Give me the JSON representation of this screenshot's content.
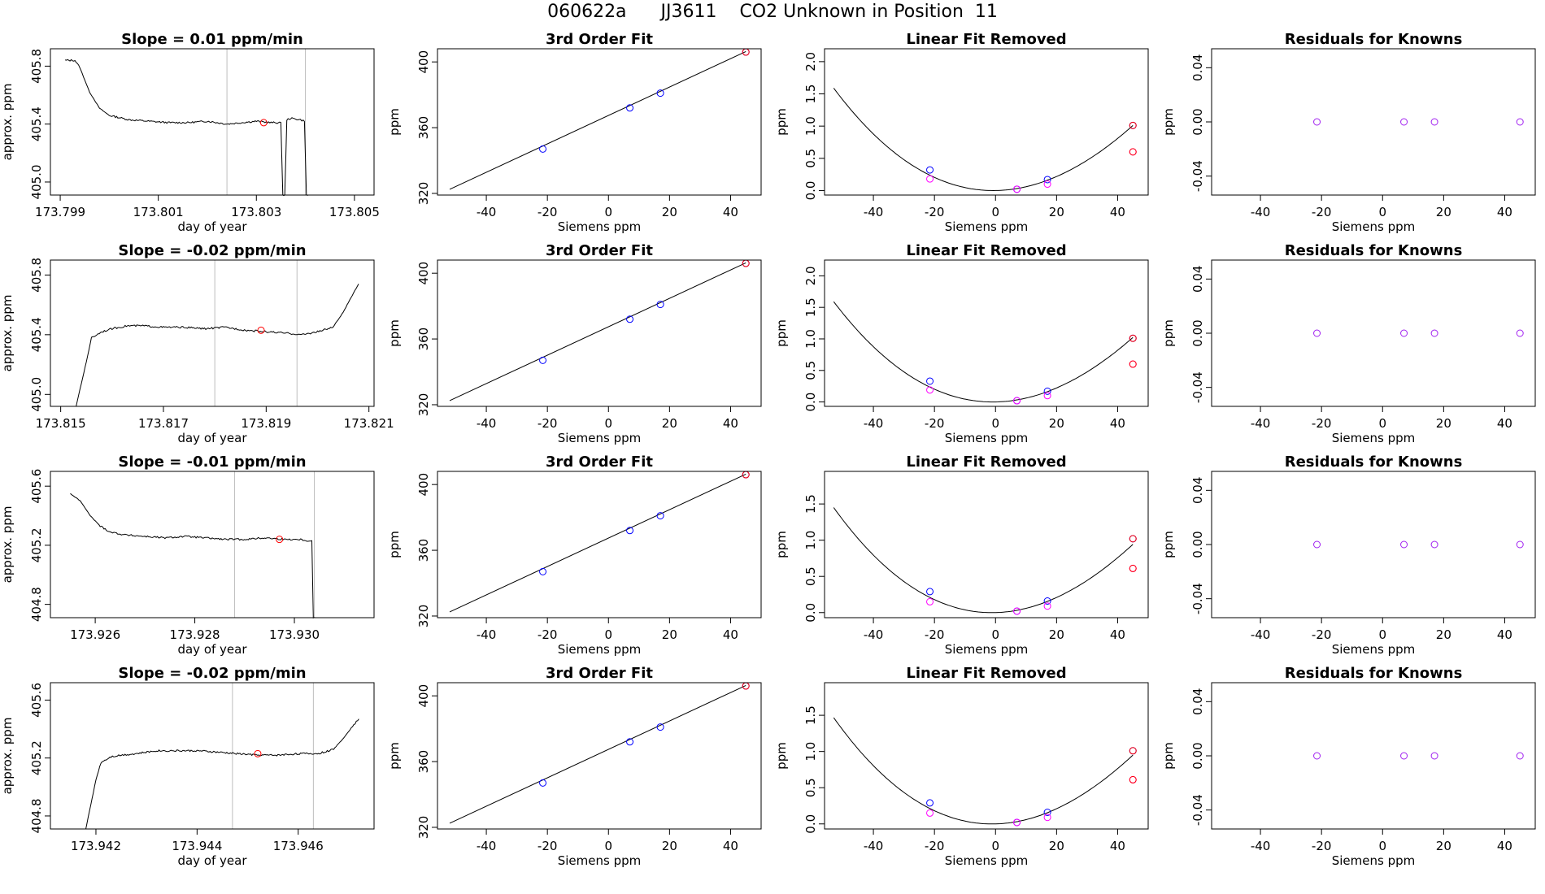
{
  "figure": {
    "title": "060622a      JJ3611    CO2 Unknown in Position  11"
  },
  "colors": {
    "line": "#000000",
    "vline": "#bebebe",
    "red": "#ff0000",
    "blue": "#0000ff",
    "magenta": "#ff00ff",
    "purple": "#a020f0"
  },
  "chart_data": [
    {
      "type": "line",
      "title": "Slope =  0.01  ppm/min",
      "xlabel": "day of year",
      "ylabel": "approx. ppm",
      "xlim": [
        173.7988,
        173.8054
      ],
      "ylim": [
        404.91,
        405.92
      ],
      "xticks": [
        173.799,
        173.801,
        173.803,
        173.805
      ],
      "xticklabels": [
        "173.799",
        "173.801",
        "173.803",
        "173.805"
      ],
      "yticks": [
        405.0,
        405.4,
        405.8
      ],
      "yticklabels": [
        "405.0",
        "405.4",
        "405.8"
      ],
      "vlines": [
        173.8024,
        173.804
      ],
      "marker": [
        173.80315,
        405.41
      ],
      "x": [
        173.7991,
        173.7993,
        173.7994,
        173.7996,
        173.7998,
        173.8,
        173.8004,
        173.8008,
        173.8012,
        173.8016,
        173.802,
        173.8024,
        173.8027,
        173.803,
        173.8033,
        173.8035,
        173.80354,
        173.80358,
        173.80362,
        173.8037,
        173.8039,
        173.80398,
        173.80402,
        173.80406
      ],
      "y": [
        405.84,
        405.84,
        405.79,
        405.62,
        405.51,
        405.46,
        405.43,
        405.42,
        405.41,
        405.41,
        405.42,
        405.4,
        405.41,
        405.42,
        405.41,
        405.41,
        404.91,
        404.91,
        405.43,
        405.44,
        405.43,
        405.42,
        404.91,
        404.91
      ]
    },
    {
      "type": "scatter",
      "title": "3rd Order Fit",
      "xlabel": "Siemens ppm",
      "ylabel": "ppm",
      "xlim": [
        -56,
        50
      ],
      "ylim": [
        319,
        408
      ],
      "xticks": [
        -40,
        -20,
        0,
        20,
        40
      ],
      "xticklabels": [
        "-40",
        "-20",
        "0",
        "20",
        "40"
      ],
      "yticks": [
        320,
        360,
        400
      ],
      "yticklabels": [
        "320",
        "360",
        "400"
      ],
      "line": [
        [
          -52,
          322.5
        ],
        [
          45,
          406.3
        ]
      ],
      "series": [
        {
          "color": "blue",
          "x": [
            -21.5,
            7,
            17,
            45
          ],
          "y": [
            347,
            372,
            381,
            406
          ]
        },
        {
          "color": "red",
          "x": [
            45
          ],
          "y": [
            406
          ]
        }
      ]
    },
    {
      "type": "scatter",
      "title": "Linear Fit Removed",
      "xlabel": "Siemens ppm",
      "ylabel": "ppm",
      "xlim": [
        -56,
        50
      ],
      "ylim": [
        -0.07,
        2.2
      ],
      "xticks": [
        -40,
        -20,
        0,
        20,
        40
      ],
      "xticklabels": [
        "-40",
        "-20",
        "0",
        "20",
        "40"
      ],
      "yticks": [
        0.0,
        0.5,
        1.0,
        1.5,
        2.0
      ],
      "yticklabels": [
        "0.0",
        "0.5",
        "1.0",
        "1.5",
        "2.0"
      ],
      "curve": {
        "a": 0.000527,
        "b": 0.00074,
        "c": -1e-06,
        "xmin": -53,
        "xmax": 45
      },
      "series": [
        {
          "color": "blue",
          "x": [
            -21.5,
            7,
            17,
            45
          ],
          "y": [
            0.32,
            0.02,
            0.17,
            1.01
          ]
        },
        {
          "color": "magenta",
          "x": [
            -21.5,
            7,
            17,
            45
          ],
          "y": [
            0.18,
            0.02,
            0.1,
            0.6
          ]
        },
        {
          "color": "red",
          "x": [
            45,
            45
          ],
          "y": [
            1.01,
            0.6
          ]
        }
      ]
    },
    {
      "type": "scatter",
      "title": "Residuals for Knowns",
      "xlabel": "Siemens ppm",
      "ylabel": "ppm",
      "xlim": [
        -56,
        50
      ],
      "ylim": [
        -0.054,
        0.054
      ],
      "xticks": [
        -40,
        -20,
        0,
        20,
        40
      ],
      "xticklabels": [
        "-40",
        "-20",
        "0",
        "20",
        "40"
      ],
      "yticks": [
        -0.04,
        0.0,
        0.04
      ],
      "yticklabels": [
        "-0.04",
        "0.00",
        "0.04"
      ],
      "series": [
        {
          "color": "purple",
          "x": [
            -21.5,
            7,
            17,
            45
          ],
          "y": [
            0,
            0,
            0,
            0
          ]
        }
      ]
    },
    {
      "type": "line",
      "title": "Slope =  -0.02  ppm/min",
      "xlabel": "day of year",
      "ylabel": "approx. ppm",
      "xlim": [
        173.8148,
        173.8211
      ],
      "ylim": [
        404.92,
        405.9
      ],
      "xticks": [
        173.815,
        173.817,
        173.819,
        173.821
      ],
      "xticklabels": [
        "173.815",
        "173.817",
        "173.819",
        "173.821"
      ],
      "yticks": [
        405.0,
        405.4,
        405.8
      ],
      "yticklabels": [
        "405.0",
        "405.4",
        "405.8"
      ],
      "vlines": [
        173.818,
        173.8196
      ],
      "marker": [
        173.8189,
        405.43
      ],
      "x": [
        173.8153,
        173.8155,
        173.8156,
        173.8158,
        173.816,
        173.8163,
        173.8166,
        173.817,
        173.8174,
        173.8178,
        173.8182,
        173.8186,
        173.819,
        173.8194,
        173.8197,
        173.82,
        173.8203,
        173.8205,
        173.8207,
        173.8208
      ],
      "y": [
        404.92,
        405.22,
        405.38,
        405.42,
        405.44,
        405.46,
        405.46,
        405.45,
        405.45,
        405.44,
        405.45,
        405.43,
        405.42,
        405.41,
        405.4,
        405.42,
        405.45,
        405.55,
        405.68,
        405.74
      ]
    },
    {
      "type": "scatter",
      "title": "3rd Order Fit",
      "xlabel": "Siemens ppm",
      "ylabel": "ppm",
      "xlim": [
        -56,
        50
      ],
      "ylim": [
        319,
        408
      ],
      "xticks": [
        -40,
        -20,
        0,
        20,
        40
      ],
      "xticklabels": [
        "-40",
        "-20",
        "0",
        "20",
        "40"
      ],
      "yticks": [
        320,
        360,
        400
      ],
      "yticklabels": [
        "320",
        "360",
        "400"
      ],
      "line": [
        [
          -52,
          322.5
        ],
        [
          45,
          406.3
        ]
      ],
      "series": [
        {
          "color": "blue",
          "x": [
            -21.5,
            7,
            17,
            45
          ],
          "y": [
            347,
            372,
            381,
            406
          ]
        },
        {
          "color": "red",
          "x": [
            45
          ],
          "y": [
            406
          ]
        }
      ]
    },
    {
      "type": "scatter",
      "title": "Linear Fit Removed",
      "xlabel": "Siemens ppm",
      "ylabel": "ppm",
      "xlim": [
        -56,
        50
      ],
      "ylim": [
        -0.07,
        2.25
      ],
      "xticks": [
        -40,
        -20,
        0,
        20,
        40
      ],
      "xticklabels": [
        "-40",
        "-20",
        "0",
        "20",
        "40"
      ],
      "yticks": [
        0.0,
        0.5,
        1.0,
        1.5,
        2.0
      ],
      "yticklabels": [
        "0.0",
        "0.5",
        "1.0",
        "1.5",
        "2.0"
      ],
      "curve": {
        "a": 0.00053,
        "b": 0.0009,
        "c": -1e-06,
        "xmin": -53,
        "xmax": 45
      },
      "series": [
        {
          "color": "blue",
          "x": [
            -21.5,
            7,
            17,
            45
          ],
          "y": [
            0.33,
            0.02,
            0.17,
            1.01
          ]
        },
        {
          "color": "magenta",
          "x": [
            -21.5,
            7,
            17,
            45
          ],
          "y": [
            0.19,
            0.02,
            0.1,
            0.6
          ]
        },
        {
          "color": "red",
          "x": [
            45,
            45
          ],
          "y": [
            1.01,
            0.6
          ]
        }
      ]
    },
    {
      "type": "scatter",
      "title": "Residuals for Knowns",
      "xlabel": "Siemens ppm",
      "ylabel": "ppm",
      "xlim": [
        -56,
        50
      ],
      "ylim": [
        -0.054,
        0.054
      ],
      "xticks": [
        -40,
        -20,
        0,
        20,
        40
      ],
      "xticklabels": [
        "-40",
        "-20",
        "0",
        "20",
        "40"
      ],
      "yticks": [
        -0.04,
        0.0,
        0.04
      ],
      "yticklabels": [
        "-0.04",
        "0.00",
        "0.04"
      ],
      "series": [
        {
          "color": "purple",
          "x": [
            -21.5,
            7,
            17,
            45
          ],
          "y": [
            0,
            0,
            0,
            0
          ]
        }
      ]
    },
    {
      "type": "line",
      "title": "Slope =  -0.01  ppm/min",
      "xlabel": "day of year",
      "ylabel": "approx. ppm",
      "xlim": [
        173.9251,
        173.9316
      ],
      "ylim": [
        404.71,
        405.7
      ],
      "xticks": [
        173.926,
        173.928,
        173.93
      ],
      "xticklabels": [
        "173.926",
        "173.928",
        "173.930"
      ],
      "yticks": [
        404.8,
        405.2,
        405.6
      ],
      "yticklabels": [
        "404.8",
        "405.2",
        "405.6"
      ],
      "vlines": [
        173.9288,
        173.9304
      ],
      "marker": [
        173.9297,
        405.24
      ],
      "x": [
        173.9255,
        173.9257,
        173.9259,
        173.9261,
        173.9263,
        173.9266,
        173.927,
        173.9274,
        173.9278,
        173.9282,
        173.9286,
        173.929,
        173.9294,
        173.9298,
        173.9301,
        173.9303,
        173.93035,
        173.93038,
        173.93042
      ],
      "y": [
        405.55,
        405.5,
        405.4,
        405.33,
        405.29,
        405.27,
        405.26,
        405.25,
        405.26,
        405.25,
        405.24,
        405.24,
        405.25,
        405.24,
        405.24,
        405.23,
        405.23,
        404.71,
        404.71
      ]
    },
    {
      "type": "scatter",
      "title": "3rd Order Fit",
      "xlabel": "Siemens ppm",
      "ylabel": "ppm",
      "xlim": [
        -56,
        50
      ],
      "ylim": [
        319,
        408
      ],
      "xticks": [
        -40,
        -20,
        0,
        20,
        40
      ],
      "xticklabels": [
        "-40",
        "-20",
        "0",
        "20",
        "40"
      ],
      "yticks": [
        320,
        360,
        400
      ],
      "yticklabels": [
        "320",
        "360",
        "400"
      ],
      "line": [
        [
          -52,
          322.5
        ],
        [
          45,
          406.3
        ]
      ],
      "series": [
        {
          "color": "blue",
          "x": [
            -21.5,
            7,
            17,
            45
          ],
          "y": [
            347,
            372,
            381,
            406
          ]
        },
        {
          "color": "red",
          "x": [
            45
          ],
          "y": [
            406
          ]
        }
      ]
    },
    {
      "type": "scatter",
      "title": "Linear Fit Removed",
      "xlabel": "Siemens ppm",
      "ylabel": "ppm",
      "xlim": [
        -56,
        50
      ],
      "ylim": [
        -0.07,
        1.95
      ],
      "xticks": [
        -40,
        -20,
        0,
        20,
        40
      ],
      "xticklabels": [
        "-40",
        "-20",
        "0",
        "20",
        "40"
      ],
      "yticks": [
        0.0,
        0.5,
        1.0,
        1.5
      ],
      "yticklabels": [
        "0.0",
        "0.5",
        "1.0",
        "1.5"
      ],
      "curve": {
        "a": 0.000485,
        "b": 0.00115,
        "c": -1e-06,
        "xmin": -53,
        "xmax": 45
      },
      "series": [
        {
          "color": "blue",
          "x": [
            -21.5,
            7,
            17,
            45
          ],
          "y": [
            0.29,
            0.02,
            0.16,
            1.02
          ]
        },
        {
          "color": "magenta",
          "x": [
            -21.5,
            7,
            17,
            45
          ],
          "y": [
            0.15,
            0.02,
            0.09,
            0.61
          ]
        },
        {
          "color": "red",
          "x": [
            45,
            45
          ],
          "y": [
            1.02,
            0.61
          ]
        }
      ]
    },
    {
      "type": "scatter",
      "title": "Residuals for Knowns",
      "xlabel": "Siemens ppm",
      "ylabel": "ppm",
      "xlim": [
        -56,
        50
      ],
      "ylim": [
        -0.054,
        0.054
      ],
      "xticks": [
        -40,
        -20,
        0,
        20,
        40
      ],
      "xticklabels": [
        "-40",
        "-20",
        "0",
        "20",
        "40"
      ],
      "yticks": [
        -0.04,
        0.0,
        0.04
      ],
      "yticklabels": [
        "-0.04",
        "0.00",
        "0.04"
      ],
      "series": [
        {
          "color": "purple",
          "x": [
            -21.5,
            7,
            17,
            45
          ],
          "y": [
            0,
            0,
            0,
            0
          ]
        }
      ]
    },
    {
      "type": "line",
      "title": "Slope =  -0.02  ppm/min",
      "xlabel": "day of year",
      "ylabel": "approx. ppm",
      "xlim": [
        173.9411,
        173.9475
      ],
      "ylim": [
        404.71,
        405.72
      ],
      "xticks": [
        173.942,
        173.944,
        173.946
      ],
      "xticklabels": [
        "173.942",
        "173.944",
        "173.946"
      ],
      "yticks": [
        404.8,
        405.2,
        405.6
      ],
      "yticklabels": [
        "404.8",
        "405.2",
        "405.6"
      ],
      "vlines": [
        173.9447,
        173.9463
      ],
      "marker": [
        173.9452,
        405.23
      ],
      "x": [
        173.9418,
        173.942,
        173.9421,
        173.9423,
        173.9425,
        173.9428,
        173.9432,
        173.9436,
        173.944,
        173.9444,
        173.9448,
        173.9452,
        173.9456,
        173.946,
        173.9464,
        173.9467,
        173.9469,
        173.9471,
        173.9472
      ],
      "y": [
        404.71,
        405.05,
        405.17,
        405.21,
        405.22,
        405.23,
        405.25,
        405.25,
        405.25,
        405.24,
        405.23,
        405.22,
        405.22,
        405.23,
        405.23,
        405.26,
        405.34,
        405.43,
        405.47
      ]
    },
    {
      "type": "scatter",
      "title": "3rd Order Fit",
      "xlabel": "Siemens ppm",
      "ylabel": "ppm",
      "xlim": [
        -56,
        50
      ],
      "ylim": [
        319,
        408
      ],
      "xticks": [
        -40,
        -20,
        0,
        20,
        40
      ],
      "xticklabels": [
        "-40",
        "-20",
        "0",
        "20",
        "40"
      ],
      "yticks": [
        320,
        360,
        400
      ],
      "yticklabels": [
        "320",
        "360",
        "400"
      ],
      "line": [
        [
          -52,
          322.5
        ],
        [
          45,
          406.3
        ]
      ],
      "series": [
        {
          "color": "blue",
          "x": [
            -21.5,
            7,
            17,
            45
          ],
          "y": [
            347,
            372,
            381,
            406
          ]
        },
        {
          "color": "red",
          "x": [
            45
          ],
          "y": [
            406
          ]
        }
      ]
    },
    {
      "type": "scatter",
      "title": "Linear Fit Removed",
      "xlabel": "Siemens ppm",
      "ylabel": "ppm",
      "xlim": [
        -56,
        50
      ],
      "ylim": [
        -0.07,
        1.95
      ],
      "xticks": [
        -40,
        -20,
        0,
        20,
        40
      ],
      "xticklabels": [
        "-40",
        "-20",
        "0",
        "20",
        "40"
      ],
      "yticks": [
        0.0,
        0.5,
        1.0,
        1.5
      ],
      "yticklabels": [
        "0.0",
        "0.5",
        "1.0",
        "1.5"
      ],
      "curve": {
        "a": 0.00049,
        "b": 0.0011,
        "c": -1e-06,
        "xmin": -53,
        "xmax": 45
      },
      "series": [
        {
          "color": "blue",
          "x": [
            -21.5,
            7,
            17,
            45
          ],
          "y": [
            0.29,
            0.02,
            0.16,
            1.01
          ]
        },
        {
          "color": "magenta",
          "x": [
            -21.5,
            7,
            17,
            45
          ],
          "y": [
            0.15,
            0.02,
            0.09,
            0.61
          ]
        },
        {
          "color": "red",
          "x": [
            45,
            45
          ],
          "y": [
            1.01,
            0.61
          ]
        }
      ]
    },
    {
      "type": "scatter",
      "title": "Residuals for Knowns",
      "xlabel": "Siemens ppm",
      "ylabel": "ppm",
      "xlim": [
        -56,
        50
      ],
      "ylim": [
        -0.054,
        0.054
      ],
      "xticks": [
        -40,
        -20,
        0,
        20,
        40
      ],
      "xticklabels": [
        "-40",
        "-20",
        "0",
        "20",
        "40"
      ],
      "yticks": [
        -0.04,
        0.0,
        0.04
      ],
      "yticklabels": [
        "-0.04",
        "0.00",
        "0.04"
      ],
      "series": [
        {
          "color": "purple",
          "x": [
            -21.5,
            7,
            17,
            45
          ],
          "y": [
            0,
            0,
            0,
            0
          ]
        }
      ]
    }
  ]
}
